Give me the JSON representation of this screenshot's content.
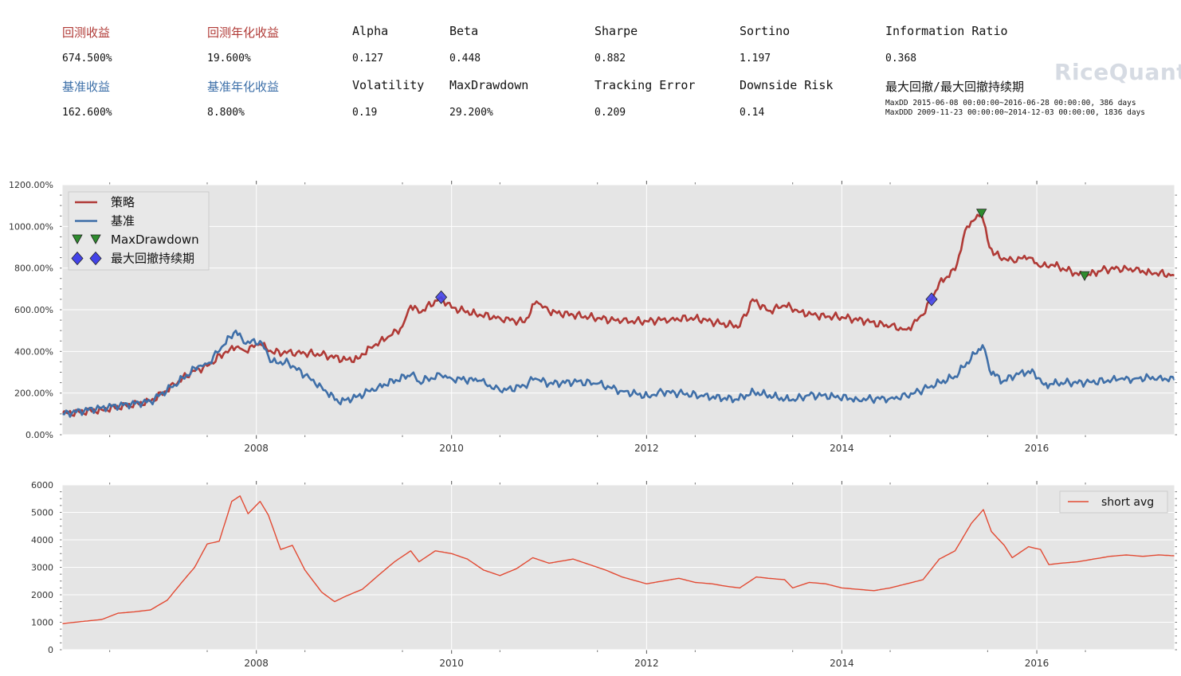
{
  "stats": [
    {
      "label": "回测收益",
      "value": "674.500%",
      "cls": "red",
      "col": 0,
      "row": 0
    },
    {
      "label": "回测年化收益",
      "value": "19.600%",
      "cls": "red",
      "col": 1,
      "row": 0
    },
    {
      "label": "Alpha",
      "value": "0.127",
      "cls": "",
      "col": 2,
      "row": 0
    },
    {
      "label": "Beta",
      "value": "0.448",
      "cls": "",
      "col": 3,
      "row": 0
    },
    {
      "label": "Sharpe",
      "value": "0.882",
      "cls": "",
      "col": 4,
      "row": 0
    },
    {
      "label": "Sortino",
      "value": "1.197",
      "cls": "",
      "col": 5,
      "row": 0
    },
    {
      "label": "Information Ratio",
      "value": "0.368",
      "cls": "",
      "col": 6,
      "row": 0
    },
    {
      "label": "基准收益",
      "value": "162.600%",
      "cls": "blue",
      "col": 0,
      "row": 1
    },
    {
      "label": "基准年化收益",
      "value": "8.800%",
      "cls": "blue",
      "col": 1,
      "row": 1
    },
    {
      "label": "Volatility",
      "value": "0.19",
      "cls": "",
      "col": 2,
      "row": 1
    },
    {
      "label": "MaxDrawdown",
      "value": "29.200%",
      "cls": "",
      "col": 3,
      "row": 1
    },
    {
      "label": "Tracking Error",
      "value": "0.209",
      "cls": "",
      "col": 4,
      "row": 1
    },
    {
      "label": "Downside Risk",
      "value": "0.14",
      "cls": "",
      "col": 5,
      "row": 1
    },
    {
      "label": "最大回撤/最大回撤持续期",
      "value": "",
      "cls": "",
      "col": 6,
      "row": 1
    }
  ],
  "maxdd_lines": [
    "MaxDD  2015-06-08 00:00:00~2016-06-28 00:00:00, 386 days",
    "MaxDDD 2009-11-23 00:00:00~2014-12-03 00:00:00, 1836 days"
  ],
  "brand": "RiceQuant",
  "colors": {
    "strategy": "#b03a36",
    "benchmark": "#3f6fa8",
    "short_avg": "#e24a33",
    "axes_bg": "#e5e5e5",
    "grid": "#ffffff",
    "dd_marker": "#2e8b2e",
    "ddd_marker": "#4343e8"
  },
  "chart_data": [
    {
      "type": "line",
      "title": "",
      "x_type": "date",
      "xlim": [
        "2006-01-04",
        "2017-05-31"
      ],
      "xticks": [
        "2008",
        "2010",
        "2012",
        "2014",
        "2016"
      ],
      "ylim": [
        0,
        1200
      ],
      "yticks": [
        "0.00%",
        "200.00%",
        "400.00%",
        "600.00%",
        "800.00%",
        "1000.00%",
        "1200.00%"
      ],
      "grid": true,
      "legend_position": "top-left",
      "series": [
        {
          "name": "策略",
          "color": "#b03a36",
          "points": [
            [
              "2006-01-04",
              100
            ],
            [
              "2006-06-01",
              120
            ],
            [
              "2006-12-01",
              160
            ],
            [
              "2007-03-01",
              240
            ],
            [
              "2007-05-01",
              300
            ],
            [
              "2007-07-01",
              330
            ],
            [
              "2007-09-01",
              390
            ],
            [
              "2007-10-17",
              420
            ],
            [
              "2007-11-15",
              405
            ],
            [
              "2008-01-15",
              435
            ],
            [
              "2008-03-01",
              395
            ],
            [
              "2008-06-01",
              395
            ],
            [
              "2008-09-01",
              385
            ],
            [
              "2008-12-01",
              360
            ],
            [
              "2009-01-15",
              365
            ],
            [
              "2009-03-01",
              420
            ],
            [
              "2009-05-01",
              460
            ],
            [
              "2009-07-01",
              520
            ],
            [
              "2009-08-01",
              620
            ],
            [
              "2009-09-01",
              585
            ],
            [
              "2009-11-23",
              660
            ],
            [
              "2010-01-01",
              610
            ],
            [
              "2010-04-01",
              580
            ],
            [
              "2010-07-01",
              560
            ],
            [
              "2010-10-01",
              540
            ],
            [
              "2010-11-15",
              640
            ],
            [
              "2011-01-01",
              590
            ],
            [
              "2011-04-01",
              575
            ],
            [
              "2011-07-01",
              560
            ],
            [
              "2011-10-01",
              545
            ],
            [
              "2012-01-01",
              545
            ],
            [
              "2012-04-01",
              555
            ],
            [
              "2012-07-01",
              560
            ],
            [
              "2012-10-01",
              535
            ],
            [
              "2012-12-15",
              520
            ],
            [
              "2013-02-01",
              650
            ],
            [
              "2013-04-01",
              595
            ],
            [
              "2013-06-01",
              620
            ],
            [
              "2013-08-01",
              590
            ],
            [
              "2013-10-01",
              570
            ],
            [
              "2014-01-01",
              565
            ],
            [
              "2014-04-01",
              545
            ],
            [
              "2014-07-01",
              520
            ],
            [
              "2014-09-01",
              505
            ],
            [
              "2014-11-01",
              575
            ],
            [
              "2014-12-03",
              650
            ],
            [
              "2015-01-01",
              730
            ],
            [
              "2015-03-01",
              790
            ],
            [
              "2015-04-15",
              1000
            ],
            [
              "2015-06-08",
              1060
            ],
            [
              "2015-07-08",
              900
            ],
            [
              "2015-08-15",
              850
            ],
            [
              "2015-10-01",
              840
            ],
            [
              "2015-12-01",
              850
            ],
            [
              "2016-01-15",
              805
            ],
            [
              "2016-03-01",
              815
            ],
            [
              "2016-06-28",
              760
            ],
            [
              "2016-09-01",
              790
            ],
            [
              "2016-11-01",
              800
            ],
            [
              "2017-01-01",
              790
            ],
            [
              "2017-03-01",
              780
            ],
            [
              "2017-05-31",
              765
            ]
          ]
        },
        {
          "name": "基准",
          "color": "#3f6fa8",
          "points": [
            [
              "2006-01-04",
              100
            ],
            [
              "2006-06-01",
              130
            ],
            [
              "2006-12-01",
              160
            ],
            [
              "2007-03-01",
              240
            ],
            [
              "2007-05-29",
              330
            ],
            [
              "2007-07-01",
              340
            ],
            [
              "2007-09-01",
              430
            ],
            [
              "2007-10-16",
              500
            ],
            [
              "2007-11-15",
              440
            ],
            [
              "2008-01-15",
              450
            ],
            [
              "2008-03-01",
              350
            ],
            [
              "2008-05-01",
              345
            ],
            [
              "2008-07-01",
              285
            ],
            [
              "2008-09-01",
              230
            ],
            [
              "2008-11-04",
              155
            ],
            [
              "2009-01-15",
              185
            ],
            [
              "2009-04-01",
              230
            ],
            [
              "2009-08-04",
              290
            ],
            [
              "2009-09-01",
              255
            ],
            [
              "2009-11-23",
              285
            ],
            [
              "2010-01-01",
              270
            ],
            [
              "2010-04-15",
              260
            ],
            [
              "2010-07-02",
              210
            ],
            [
              "2010-10-01",
              235
            ],
            [
              "2010-11-10",
              270
            ],
            [
              "2011-01-01",
              245
            ],
            [
              "2011-04-15",
              255
            ],
            [
              "2011-07-01",
              245
            ],
            [
              "2011-10-01",
              210
            ],
            [
              "2012-01-06",
              185
            ],
            [
              "2012-03-01",
              205
            ],
            [
              "2012-05-01",
              200
            ],
            [
              "2012-08-01",
              185
            ],
            [
              "2012-12-03",
              170
            ],
            [
              "2013-02-06",
              205
            ],
            [
              "2013-06-25",
              165
            ],
            [
              "2013-09-01",
              190
            ],
            [
              "2013-12-01",
              185
            ],
            [
              "2014-03-01",
              170
            ],
            [
              "2014-07-01",
              175
            ],
            [
              "2014-09-01",
              185
            ],
            [
              "2014-12-03",
              235
            ],
            [
              "2015-03-01",
              280
            ],
            [
              "2015-06-12",
              430
            ],
            [
              "2015-07-08",
              310
            ],
            [
              "2015-08-26",
              255
            ],
            [
              "2015-11-01",
              300
            ],
            [
              "2015-12-22",
              300
            ],
            [
              "2016-01-28",
              240
            ],
            [
              "2016-04-01",
              250
            ],
            [
              "2016-07-01",
              250
            ],
            [
              "2016-11-01",
              265
            ],
            [
              "2017-01-01",
              270
            ],
            [
              "2017-04-01",
              275
            ],
            [
              "2017-05-31",
              262
            ]
          ]
        }
      ],
      "markers": [
        {
          "name": "MaxDrawdown",
          "shape": "triangle-down",
          "color": "#2e8b2e",
          "points": [
            [
              "2015-06-08",
              1060
            ],
            [
              "2016-06-28",
              760
            ]
          ]
        },
        {
          "name": "最大回撤持续期",
          "shape": "diamond",
          "color": "#4343e8",
          "points": [
            [
              "2009-11-23",
              660
            ],
            [
              "2014-12-03",
              650
            ]
          ]
        }
      ]
    },
    {
      "type": "line",
      "title": "",
      "x_type": "date",
      "xlim": [
        "2006-01-04",
        "2017-05-31"
      ],
      "xticks": [
        "2008",
        "2010",
        "2012",
        "2014",
        "2016"
      ],
      "ylim": [
        0,
        6000
      ],
      "yticks": [
        "0",
        "1000",
        "2000",
        "3000",
        "4000",
        "5000",
        "6000"
      ],
      "grid": true,
      "legend_position": "top-right",
      "series": [
        {
          "name": "short avg",
          "color": "#e24a33",
          "points": [
            [
              "2006-01-04",
              950
            ],
            [
              "2006-03-01",
              1010
            ],
            [
              "2006-06-01",
              1100
            ],
            [
              "2006-08-01",
              1330
            ],
            [
              "2006-10-01",
              1380
            ],
            [
              "2006-12-01",
              1450
            ],
            [
              "2007-02-01",
              1800
            ],
            [
              "2007-04-01",
              2500
            ],
            [
              "2007-05-15",
              3000
            ],
            [
              "2007-07-01",
              3850
            ],
            [
              "2007-08-15",
              3950
            ],
            [
              "2007-10-01",
              5400
            ],
            [
              "2007-11-01",
              5600
            ],
            [
              "2007-12-01",
              4950
            ],
            [
              "2008-01-15",
              5400
            ],
            [
              "2008-02-15",
              4900
            ],
            [
              "2008-04-01",
              3650
            ],
            [
              "2008-05-15",
              3800
            ],
            [
              "2008-07-01",
              2900
            ],
            [
              "2008-09-01",
              2100
            ],
            [
              "2008-10-20",
              1750
            ],
            [
              "2008-12-01",
              1950
            ],
            [
              "2009-02-01",
              2200
            ],
            [
              "2009-04-01",
              2700
            ],
            [
              "2009-06-01",
              3200
            ],
            [
              "2009-08-01",
              3600
            ],
            [
              "2009-09-01",
              3200
            ],
            [
              "2009-11-01",
              3600
            ],
            [
              "2010-01-01",
              3500
            ],
            [
              "2010-03-01",
              3300
            ],
            [
              "2010-05-01",
              2900
            ],
            [
              "2010-07-01",
              2700
            ],
            [
              "2010-09-01",
              2950
            ],
            [
              "2010-11-01",
              3350
            ],
            [
              "2011-01-01",
              3150
            ],
            [
              "2011-04-01",
              3300
            ],
            [
              "2011-06-01",
              3100
            ],
            [
              "2011-08-01",
              2900
            ],
            [
              "2011-10-01",
              2650
            ],
            [
              "2012-01-01",
              2400
            ],
            [
              "2012-03-01",
              2500
            ],
            [
              "2012-05-01",
              2600
            ],
            [
              "2012-07-01",
              2450
            ],
            [
              "2012-09-01",
              2400
            ],
            [
              "2012-11-01",
              2300
            ],
            [
              "2012-12-15",
              2250
            ],
            [
              "2013-02-15",
              2650
            ],
            [
              "2013-04-01",
              2600
            ],
            [
              "2013-06-01",
              2550
            ],
            [
              "2013-07-01",
              2250
            ],
            [
              "2013-09-01",
              2450
            ],
            [
              "2013-11-01",
              2400
            ],
            [
              "2014-01-01",
              2250
            ],
            [
              "2014-03-01",
              2200
            ],
            [
              "2014-05-01",
              2150
            ],
            [
              "2014-07-01",
              2250
            ],
            [
              "2014-09-01",
              2400
            ],
            [
              "2014-11-01",
              2550
            ],
            [
              "2015-01-01",
              3300
            ],
            [
              "2015-03-01",
              3600
            ],
            [
              "2015-05-01",
              4600
            ],
            [
              "2015-06-15",
              5100
            ],
            [
              "2015-07-15",
              4300
            ],
            [
              "2015-09-01",
              3800
            ],
            [
              "2015-10-01",
              3350
            ],
            [
              "2015-12-01",
              3750
            ],
            [
              "2016-01-15",
              3650
            ],
            [
              "2016-02-15",
              3100
            ],
            [
              "2016-04-01",
              3150
            ],
            [
              "2016-06-01",
              3200
            ],
            [
              "2016-08-01",
              3300
            ],
            [
              "2016-10-01",
              3400
            ],
            [
              "2016-12-01",
              3450
            ],
            [
              "2017-02-01",
              3400
            ],
            [
              "2017-04-01",
              3450
            ],
            [
              "2017-05-31",
              3420
            ]
          ]
        }
      ],
      "markers": []
    }
  ]
}
